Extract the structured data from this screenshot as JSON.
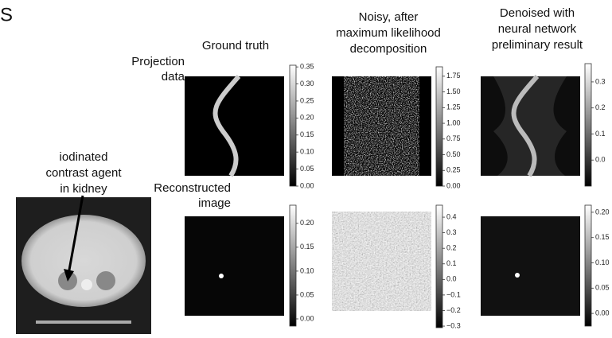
{
  "header_fragment": "S",
  "columns": [
    {
      "title_lines": [
        "Ground truth"
      ]
    },
    {
      "title_lines": [
        "Noisy, after",
        "maximum likelihood",
        "decomposition"
      ]
    },
    {
      "title_lines": [
        "Denoised with",
        "neural network",
        "preliminary result"
      ]
    }
  ],
  "rows": [
    {
      "label_lines": [
        "Projection",
        "data"
      ]
    },
    {
      "label_lines": [
        "Reconstructed",
        "image"
      ]
    }
  ],
  "annotation_lines": [
    "iodinated",
    "contrast agent",
    "in kidney"
  ],
  "colorbars": [
    [
      {
        "lim": [
          0,
          0.355
        ],
        "ticks": [
          {
            "value": 0,
            "label": "0.00"
          },
          {
            "value": 0.05,
            "label": "0.05"
          },
          {
            "value": 0.1,
            "label": "0.10"
          },
          {
            "value": 0.15,
            "label": "0.15"
          },
          {
            "value": 0.2,
            "label": "0.20"
          },
          {
            "value": 0.25,
            "label": "0.25"
          },
          {
            "value": 0.3,
            "label": "0.30"
          },
          {
            "value": 0.35,
            "label": "0.35"
          }
        ]
      },
      {
        "lim": [
          0,
          1.9
        ],
        "ticks": [
          {
            "value": 0,
            "label": "0.00"
          },
          {
            "value": 0.25,
            "label": "0.25"
          },
          {
            "value": 0.5,
            "label": "0.50"
          },
          {
            "value": 0.75,
            "label": "0.75"
          },
          {
            "value": 1,
            "label": "1.00"
          },
          {
            "value": 1.25,
            "label": "1.25"
          },
          {
            "value": 1.5,
            "label": "1.50"
          },
          {
            "value": 1.75,
            "label": "1.75"
          }
        ]
      },
      {
        "lim": [
          -0.1,
          0.37
        ],
        "ticks": [
          {
            "value": 0,
            "label": "0.0"
          },
          {
            "value": 0.1,
            "label": "0.1"
          },
          {
            "value": 0.2,
            "label": "0.2"
          },
          {
            "value": 0.3,
            "label": "0.3"
          }
        ]
      }
    ],
    [
      {
        "lim": [
          -0.015,
          0.238
        ],
        "ticks": [
          {
            "value": 0,
            "label": "0.00"
          },
          {
            "value": 0.05,
            "label": "0.05"
          },
          {
            "value": 0.1,
            "label": "0.10"
          },
          {
            "value": 0.15,
            "label": "0.15"
          },
          {
            "value": 0.2,
            "label": "0.20"
          }
        ]
      },
      {
        "lim": [
          -0.31,
          0.477
        ],
        "ticks": [
          {
            "value": -0.3,
            "label": "−0.3"
          },
          {
            "value": -0.2,
            "label": "−0.2"
          },
          {
            "value": -0.1,
            "label": "−0.1"
          },
          {
            "value": 0,
            "label": "0.0"
          },
          {
            "value": 0.1,
            "label": "0.1"
          },
          {
            "value": 0.2,
            "label": "0.2"
          },
          {
            "value": 0.3,
            "label": "0.3"
          },
          {
            "value": 0.4,
            "label": "0.4"
          }
        ]
      },
      {
        "lim": [
          -0.025,
          0.214
        ],
        "ticks": [
          {
            "value": 0,
            "label": "0.00"
          },
          {
            "value": 0.05,
            "label": "0.05"
          },
          {
            "value": 0.1,
            "label": "0.10"
          },
          {
            "value": 0.15,
            "label": "0.15"
          },
          {
            "value": 0.2,
            "label": "0.20"
          }
        ]
      }
    ]
  ]
}
